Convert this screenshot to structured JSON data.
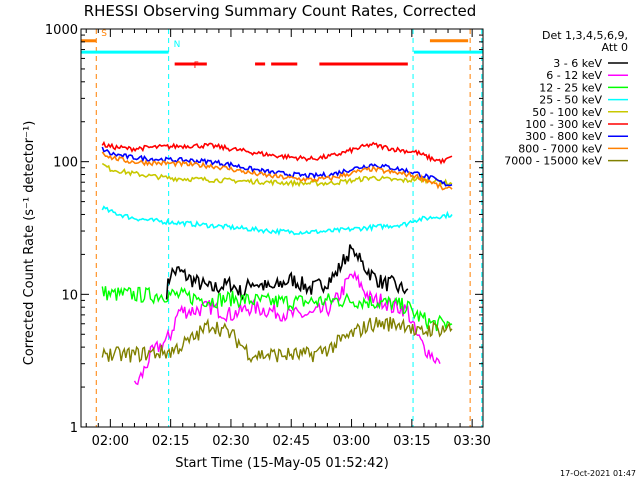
{
  "chart_data": {
    "type": "line",
    "title": "RHESSI Observing Summary Count Rates, Corrected",
    "ylabel": "Corrected Count Rate (s⁻¹ detector⁻¹)",
    "xlabel": "Start Time (15-May-05 01:52:42)",
    "footer": "17-Oct-2021 01:47",
    "ylog": true,
    "ylim": [
      1,
      1000
    ],
    "y_ticks": [
      1,
      10,
      100,
      1000
    ],
    "y_tick_labels": [
      "1",
      "10",
      "100",
      "1000"
    ],
    "xlim_min": [
      112.7,
      212.7
    ],
    "x_ticks_min": [
      120,
      135,
      150,
      165,
      180,
      195,
      210
    ],
    "x_tick_labels": [
      "02:00",
      "02:15",
      "02:30",
      "02:45",
      "03:00",
      "03:15",
      "03:30"
    ],
    "legend": {
      "header1": "Det 1,3,4,5,6,9,",
      "header2": "Att 0",
      "placement": "right"
    },
    "flags": [
      {
        "label": "S",
        "color": "#ff8000",
        "segments": [
          [
            112.7,
            116.5
          ],
          [
            199.5,
            209
          ]
        ],
        "level": 815,
        "vline": [
          116.5,
          209.5
        ]
      },
      {
        "label": "N",
        "color": "#00ffff",
        "segments": [
          [
            112.7,
            134.5
          ],
          [
            195.5,
            212.7
          ]
        ],
        "level": 670,
        "vline": [
          134.5,
          195.3,
          212.4
        ]
      },
      {
        "label": "F",
        "color": "#ff0000",
        "segments": [
          [
            136,
            144
          ],
          [
            156,
            158.5
          ],
          [
            160,
            166.5
          ],
          [
            172,
            194
          ]
        ],
        "level": 545
      }
    ],
    "series": [
      {
        "name": "3 - 6 keV",
        "color": "#000000",
        "t": [
          120,
          125,
          128,
          130,
          133,
          134,
          135,
          137,
          140,
          145,
          150,
          153,
          155,
          160,
          165,
          170,
          173,
          176,
          178,
          180,
          182,
          185,
          188,
          190,
          192,
          194
        ],
        "y": [
          null,
          null,
          null,
          null,
          null,
          10.5,
          14.5,
          15,
          13,
          11,
          12,
          10,
          12.5,
          11,
          13,
          11,
          12,
          14,
          18,
          22,
          18,
          14,
          12,
          12,
          11,
          11
        ]
      },
      {
        "name": "6 - 12 keV",
        "color": "#ff00ff",
        "t": [
          126,
          128,
          130,
          132,
          134,
          135,
          137,
          140,
          145,
          150,
          155,
          160,
          165,
          170,
          175,
          178,
          180,
          182,
          185,
          188,
          190,
          192,
          194,
          196,
          198,
          200,
          202
        ],
        "y": [
          2,
          2.5,
          3.5,
          4,
          4.5,
          5,
          7.5,
          7.5,
          8,
          7,
          8,
          7.5,
          7,
          7,
          8,
          11,
          14,
          12,
          9,
          9,
          8,
          8,
          7.5,
          5,
          4,
          3.5,
          3
        ]
      },
      {
        "name": "12 - 25 keV",
        "color": "#00ff00",
        "t": [
          118,
          120,
          125,
          130,
          135,
          140,
          145,
          150,
          155,
          160,
          165,
          170,
          175,
          180,
          185,
          190,
          194,
          196,
          200,
          205
        ],
        "y": [
          10.5,
          10,
          10,
          9.8,
          10,
          9.5,
          9,
          9.3,
          9,
          8.8,
          8.8,
          8.8,
          9,
          9,
          8.8,
          8.5,
          8,
          7,
          6,
          6
        ]
      },
      {
        "name": "25 - 50 keV",
        "color": "#00ffff",
        "t": [
          118,
          120,
          125,
          130,
          135,
          140,
          145,
          150,
          155,
          160,
          165,
          170,
          175,
          180,
          185,
          190,
          194,
          195,
          200,
          205
        ],
        "y": [
          45,
          42,
          38,
          36,
          35,
          34,
          33,
          32,
          31,
          30,
          29.5,
          29.5,
          30,
          31,
          32,
          33,
          34,
          36,
          38,
          40
        ]
      },
      {
        "name": "50 - 100 keV",
        "color": "#c8c800",
        "t": [
          118,
          120,
          125,
          130,
          135,
          140,
          145,
          150,
          155,
          160,
          165,
          170,
          175,
          180,
          185,
          190,
          194,
          196,
          200,
          203,
          205
        ],
        "y": [
          95,
          88,
          82,
          78,
          75,
          74,
          73,
          72,
          71,
          70,
          69,
          68.5,
          69,
          72,
          76,
          73,
          72,
          74,
          72,
          70,
          68
        ]
      },
      {
        "name": "100 - 300 keV",
        "color": "#ff0000",
        "t": [
          118,
          120,
          125,
          130,
          135,
          140,
          145,
          150,
          155,
          160,
          165,
          170,
          175,
          180,
          185,
          190,
          194,
          196,
          200,
          203,
          205
        ],
        "y": [
          135,
          130,
          125,
          128,
          130,
          132,
          132,
          125,
          118,
          112,
          108,
          105,
          110,
          122,
          135,
          125,
          120,
          118,
          105,
          100,
          110
        ]
      },
      {
        "name": "300 - 800 keV",
        "color": "#0000ff",
        "t": [
          118,
          120,
          125,
          130,
          135,
          140,
          145,
          150,
          155,
          160,
          165,
          170,
          175,
          180,
          185,
          190,
          194,
          196,
          200,
          203,
          205
        ],
        "y": [
          125,
          115,
          108,
          105,
          103,
          102,
          100,
          95,
          88,
          83,
          80,
          78,
          80,
          88,
          95,
          90,
          85,
          82,
          75,
          68,
          67
        ]
      },
      {
        "name": "800 - 7000 keV",
        "color": "#ff8000",
        "t": [
          118,
          120,
          125,
          130,
          135,
          140,
          145,
          150,
          155,
          160,
          165,
          170,
          175,
          180,
          185,
          190,
          194,
          196,
          200,
          203,
          205
        ],
        "y": [
          118,
          108,
          100,
          98,
          97,
          95,
          93,
          88,
          82,
          78,
          75,
          73,
          75,
          82,
          88,
          83,
          80,
          78,
          70,
          62,
          62
        ]
      },
      {
        "name": "7000 - 15000 keV",
        "color": "#808000",
        "t": [
          118,
          120,
          125,
          130,
          135,
          140,
          145,
          150,
          155,
          160,
          165,
          170,
          175,
          180,
          185,
          190,
          194,
          196,
          200,
          205
        ],
        "y": [
          3.8,
          3.5,
          3.5,
          3.6,
          3.7,
          4.5,
          6,
          5,
          3.5,
          3.5,
          3.5,
          3.5,
          4,
          5,
          6,
          6,
          6,
          5,
          5.5,
          5.5
        ]
      }
    ]
  }
}
